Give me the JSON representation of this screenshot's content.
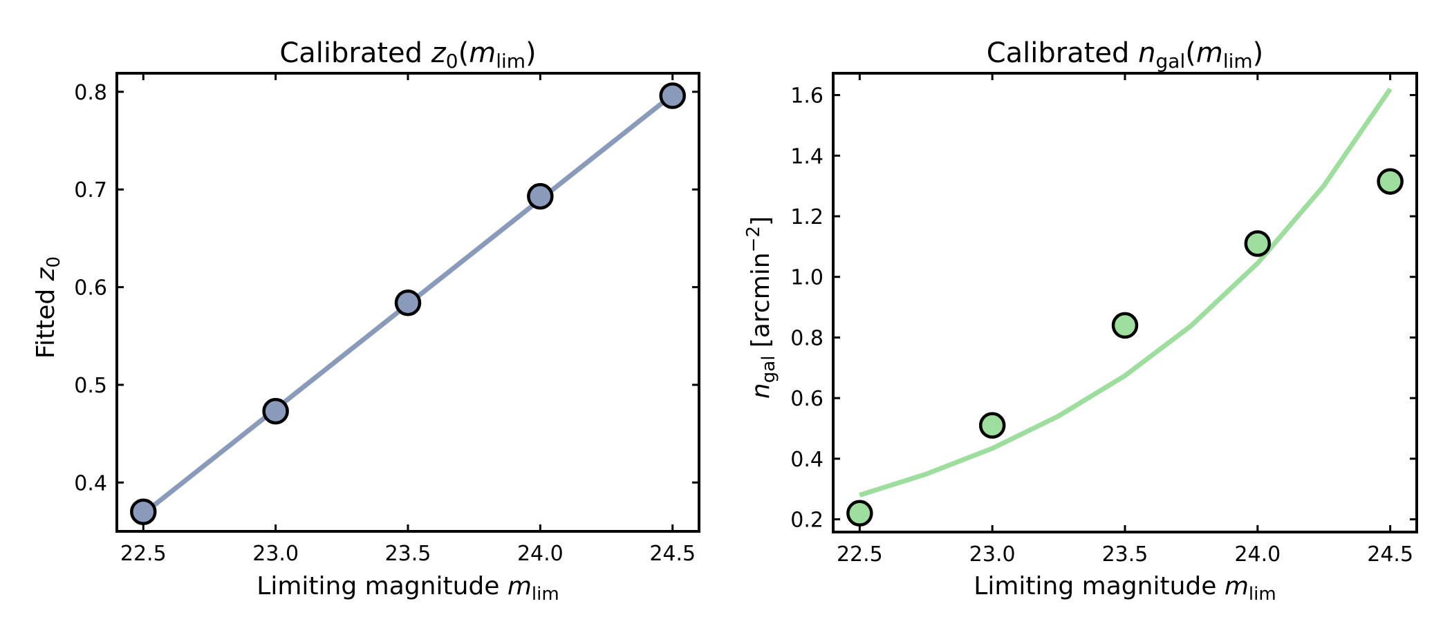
{
  "chart_data": [
    {
      "type": "line",
      "title_parts": {
        "prefix": "Calibrated ",
        "sym": "z",
        "sub": "0",
        "open": "(",
        "arg": "m",
        "argsub": "lim",
        "close": ")"
      },
      "xlabel_parts": {
        "text": "Limiting magnitude ",
        "sym": "m",
        "sub": "lim"
      },
      "ylabel_parts": {
        "text": "Fitted ",
        "sym": "z",
        "sub": "0"
      },
      "xlim": [
        22.4,
        24.6
      ],
      "ylim": [
        0.35,
        0.819
      ],
      "xticks": [
        22.5,
        23.0,
        23.5,
        24.0,
        24.5
      ],
      "xtick_labels": [
        "22.5",
        "23.0",
        "23.5",
        "24.0",
        "24.5"
      ],
      "yticks": [
        0.4,
        0.5,
        0.6,
        0.7,
        0.8
      ],
      "ytick_labels": [
        "0.4",
        "0.5",
        "0.6",
        "0.7",
        "0.8"
      ],
      "points": {
        "x": [
          22.5,
          23.0,
          23.5,
          24.0,
          24.5
        ],
        "y": [
          0.37,
          0.473,
          0.584,
          0.693,
          0.796
        ]
      },
      "fit": {
        "x": [
          22.5,
          24.5
        ],
        "y": [
          0.368,
          0.797
        ]
      },
      "color": "#8a9aba"
    },
    {
      "type": "line",
      "title_parts": {
        "prefix": "Calibrated ",
        "sym": "n",
        "sub": "gal",
        "open": "(",
        "arg": "m",
        "argsub": "lim",
        "close": ")"
      },
      "xlabel_parts": {
        "text": "Limiting magnitude ",
        "sym": "m",
        "sub": "lim"
      },
      "ylabel_parts": {
        "text": " [arcmin",
        "sym": "n",
        "sub": "gal",
        "sup": "−2",
        "close": "]"
      },
      "xlim": [
        22.4,
        24.6
      ],
      "ylim": [
        0.158,
        1.672
      ],
      "xticks": [
        22.5,
        23.0,
        23.5,
        24.0,
        24.5
      ],
      "xtick_labels": [
        "22.5",
        "23.0",
        "23.5",
        "24.0",
        "24.5"
      ],
      "yticks": [
        0.2,
        0.4,
        0.6,
        0.8,
        1.0,
        1.2,
        1.4,
        1.6
      ],
      "ytick_labels": [
        "0.2",
        "0.4",
        "0.6",
        "0.8",
        "1.0",
        "1.2",
        "1.4",
        "1.6"
      ],
      "points": {
        "x": [
          22.5,
          23.0,
          23.5,
          24.0,
          24.5
        ],
        "y": [
          0.22,
          0.51,
          0.84,
          1.11,
          1.315
        ]
      },
      "fit": {
        "x": [
          22.5,
          22.75,
          23.0,
          23.25,
          23.5,
          23.75,
          24.0,
          24.25,
          24.5
        ],
        "y": [
          0.28,
          0.349,
          0.434,
          0.541,
          0.674,
          0.839,
          1.045,
          1.301,
          1.62
        ]
      },
      "color": "#9ddd9d"
    }
  ]
}
